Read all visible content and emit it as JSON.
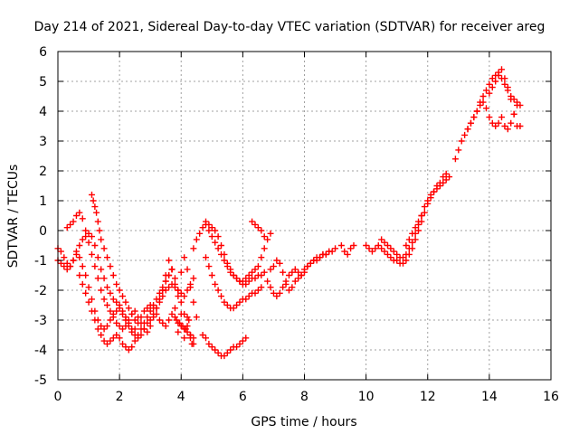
{
  "chart_data": {
    "type": "scatter",
    "title": "Day 214 of 2021, Sidereal Day-to-day VTEC variation (SDTVAR) for receiver areg",
    "xlabel": "GPS time / hours",
    "ylabel": "SDTVAR / TECUs",
    "xlim": [
      0,
      16
    ],
    "ylim": [
      -5,
      6
    ],
    "xticks": [
      "0",
      "2",
      "4",
      "6",
      "8",
      "10",
      "12",
      "14",
      "16"
    ],
    "yticks": [
      "-5",
      "-4",
      "-3",
      "-2",
      "-1",
      "0",
      "1",
      "2",
      "3",
      "4",
      "5",
      "6"
    ],
    "grid": true,
    "marker": "plus",
    "color": "#ff0000",
    "series": [
      {
        "x": [
          0.0,
          0.1,
          0.2,
          0.3,
          0.4,
          0.5,
          0.6,
          0.7,
          0.8,
          0.9,
          1.0,
          1.1,
          1.2,
          1.3,
          1.4,
          1.5,
          1.6,
          1.7,
          1.8,
          1.9,
          2.0,
          2.1,
          2.2,
          2.3,
          2.4,
          2.5,
          2.6,
          2.7,
          2.8,
          2.9,
          3.0,
          3.1,
          3.2,
          3.3,
          3.4,
          3.5,
          3.6,
          3.7,
          3.8,
          3.9,
          4.0,
          4.1,
          4.2,
          4.3,
          4.4
        ],
        "y": [
          -1.0,
          -1.1,
          -1.2,
          -1.3,
          -1.2,
          -1.0,
          -0.7,
          -0.5,
          -0.3,
          -0.2,
          -0.1,
          -0.2,
          -0.5,
          -0.9,
          -1.3,
          -1.6,
          -1.9,
          -2.1,
          -2.3,
          -2.4,
          -2.5,
          -2.7,
          -2.9,
          -3.1,
          -3.3,
          -3.5,
          -3.6,
          -3.5,
          -3.3,
          -3.1,
          -3.0,
          -2.8,
          -2.6,
          -2.4,
          -2.2,
          -2.0,
          -1.9,
          -1.8,
          -1.9,
          -2.0,
          -2.1,
          -2.2,
          -2.0,
          -1.8,
          -1.6
        ]
      },
      {
        "x": [
          0.0,
          0.1,
          0.2,
          0.3,
          0.4,
          0.5,
          0.6,
          0.7,
          0.8,
          0.9,
          1.0,
          1.1,
          1.2,
          1.3,
          1.4,
          1.5,
          1.6,
          1.7,
          1.8,
          1.9,
          2.0,
          2.1,
          2.2,
          2.3,
          2.4,
          2.5,
          2.6,
          2.7,
          2.8,
          2.9,
          3.0,
          3.1,
          3.2,
          3.3,
          3.4,
          3.5,
          3.6,
          3.7,
          3.8,
          3.9,
          4.0,
          4.1,
          4.2,
          4.3,
          4.4
        ],
        "y": [
          -0.6,
          -0.7,
          -0.9,
          -1.1,
          -1.2,
          -1.0,
          -0.8,
          -0.9,
          -1.2,
          -1.5,
          -1.9,
          -2.3,
          -2.7,
          -3.0,
          -3.2,
          -3.3,
          -3.2,
          -3.0,
          -2.8,
          -2.7,
          -2.6,
          -2.8,
          -3.0,
          -3.2,
          -3.4,
          -3.3,
          -3.1,
          -2.9,
          -2.7,
          -2.6,
          -2.5,
          -2.6,
          -2.8,
          -3.0,
          -3.1,
          -3.2,
          -3.0,
          -2.8,
          -2.9,
          -3.1,
          -3.2,
          -3.3,
          -3.4,
          -3.6,
          -3.8
        ]
      },
      {
        "x": [
          0.3,
          0.4,
          0.5,
          0.6,
          0.7,
          0.8,
          0.9,
          1.0,
          1.1,
          1.2,
          1.3,
          1.4,
          1.5,
          1.6,
          1.7,
          1.8,
          1.9,
          2.0,
          2.1,
          2.2,
          2.3,
          2.4,
          2.5,
          2.6,
          2.7,
          2.8,
          2.9,
          3.0,
          3.1,
          3.2,
          3.3,
          3.4,
          3.5,
          3.6,
          3.7,
          3.8,
          3.9,
          4.0,
          4.1,
          4.2,
          4.3
        ],
        "y": [
          0.1,
          0.2,
          0.3,
          0.5,
          0.6,
          0.4,
          0.0,
          -0.4,
          -0.8,
          -1.2,
          -1.6,
          -2.0,
          -2.3,
          -2.5,
          -2.7,
          -2.9,
          -3.1,
          -3.2,
          -3.3,
          -3.2,
          -3.0,
          -2.8,
          -2.7,
          -2.9,
          -3.1,
          -3.3,
          -3.4,
          -3.2,
          -2.9,
          -2.6,
          -2.3,
          -2.0,
          -1.7,
          -1.5,
          -1.3,
          -1.6,
          -2.0,
          -2.4,
          -2.8,
          -3.2,
          -3.5
        ]
      },
      {
        "x": [
          0.7,
          0.8,
          0.9,
          1.0,
          1.1,
          1.2,
          1.3,
          1.4,
          1.5,
          1.6,
          1.7,
          1.8,
          1.9,
          2.0,
          2.1,
          2.2,
          2.3,
          2.4,
          2.5,
          2.6,
          2.7,
          2.8,
          2.9,
          3.0,
          3.1,
          3.2,
          3.3,
          3.4,
          3.5,
          3.6,
          3.7
        ],
        "y": [
          -1.5,
          -1.8,
          -2.1,
          -2.4,
          -2.7,
          -3.0,
          -3.3,
          -3.5,
          -3.7,
          -3.8,
          -3.7,
          -3.6,
          -3.5,
          -3.6,
          -3.8,
          -3.9,
          -4.0,
          -3.9,
          -3.7,
          -3.5,
          -3.3,
          -3.1,
          -2.9,
          -2.7,
          -2.5,
          -2.3,
          -2.1,
          -1.9,
          -1.7,
          -1.5,
          -1.3
        ]
      },
      {
        "x": [
          1.1,
          1.15,
          1.2,
          1.25,
          1.3,
          1.35,
          1.4,
          1.5,
          1.6,
          1.7,
          1.8,
          1.9,
          2.0,
          2.1,
          2.2,
          2.3,
          2.4,
          2.5
        ],
        "y": [
          1.2,
          1.0,
          0.8,
          0.6,
          0.3,
          0.0,
          -0.3,
          -0.6,
          -0.9,
          -1.2,
          -1.5,
          -1.8,
          -2.0,
          -2.2,
          -2.4,
          -2.6,
          -2.8,
          -3.0
        ]
      },
      {
        "x": [
          3.4,
          3.5,
          3.6,
          3.7,
          3.8,
          3.9,
          4.0,
          4.1,
          4.2,
          4.3,
          4.4,
          4.5
        ],
        "y": [
          -2.0,
          -1.5,
          -1.0,
          -1.3,
          -1.8,
          -2.2,
          -1.4,
          -0.9,
          -1.3,
          -1.9,
          -2.4,
          -2.9
        ]
      },
      {
        "x": [
          3.8,
          3.85,
          3.9,
          3.95,
          4.0,
          4.05,
          4.1,
          4.15,
          4.2,
          4.25,
          4.3,
          4.35,
          4.4
        ],
        "y": [
          -2.6,
          -3.0,
          -3.4,
          -3.1,
          -2.8,
          -3.2,
          -3.6,
          -3.3,
          -2.9,
          -3.0,
          -3.5,
          -3.8,
          -3.6
        ]
      },
      {
        "x": [
          4.4,
          4.5,
          4.6,
          4.7,
          4.8,
          4.9,
          5.0,
          5.1,
          5.2,
          5.3,
          5.4,
          5.5,
          5.6,
          5.7,
          5.8,
          5.9,
          6.0,
          6.1,
          6.2,
          6.3,
          6.4,
          6.5,
          6.6,
          6.7
        ],
        "y": [
          -0.6,
          -0.3,
          -0.1,
          0.1,
          0.3,
          0.2,
          0.1,
          0.0,
          -0.2,
          -0.5,
          -0.8,
          -1.1,
          -1.3,
          -1.5,
          -1.6,
          -1.7,
          -1.8,
          -1.8,
          -1.7,
          -1.6,
          -1.6,
          -1.5,
          -1.5,
          -1.4
        ]
      },
      {
        "x": [
          4.8,
          4.9,
          5.0,
          5.1,
          5.2,
          5.3,
          5.4,
          5.5,
          5.6,
          5.7,
          5.8,
          5.9,
          6.0,
          6.1,
          6.2,
          6.3,
          6.4,
          6.5,
          6.6
        ],
        "y": [
          -0.9,
          -1.2,
          -1.5,
          -1.8,
          -2.0,
          -2.2,
          -2.4,
          -2.5,
          -2.6,
          -2.6,
          -2.5,
          -2.4,
          -2.3,
          -2.3,
          -2.2,
          -2.1,
          -2.1,
          -2.0,
          -1.9
        ]
      },
      {
        "x": [
          4.8,
          4.9,
          5.0,
          5.1,
          5.2,
          5.3,
          5.4,
          5.5,
          5.6,
          5.7,
          5.8,
          5.9,
          6.0,
          6.1,
          6.2,
          6.3,
          6.4,
          6.5,
          6.6,
          6.7,
          6.8,
          6.9
        ],
        "y": [
          0.2,
          0.0,
          -0.2,
          -0.4,
          -0.6,
          -0.8,
          -1.0,
          -1.2,
          -1.4,
          -1.5,
          -1.6,
          -1.7,
          -1.7,
          -1.6,
          -1.5,
          -1.4,
          -1.3,
          -1.2,
          -0.9,
          -0.6,
          -0.3,
          -0.1
        ]
      },
      {
        "x": [
          4.7,
          4.8,
          4.9,
          5.0,
          5.1,
          5.2,
          5.3,
          5.4,
          5.5,
          5.6,
          5.7,
          5.8,
          5.9,
          6.0,
          6.1
        ],
        "y": [
          -3.5,
          -3.6,
          -3.8,
          -3.9,
          -4.0,
          -4.1,
          -4.2,
          -4.2,
          -4.1,
          -4.0,
          -3.9,
          -3.9,
          -3.8,
          -3.7,
          -3.6
        ]
      },
      {
        "x": [
          6.3,
          6.4,
          6.5,
          6.6,
          6.7
        ],
        "y": [
          0.3,
          0.2,
          0.1,
          0.0,
          -0.2
        ]
      },
      {
        "x": [
          6.8,
          6.9,
          7.0,
          7.1,
          7.2,
          7.3,
          7.4,
          7.5,
          7.6,
          7.7,
          7.8,
          7.9,
          8.0,
          8.1,
          8.2,
          8.3,
          8.4,
          8.5,
          8.6,
          8.7,
          8.8,
          8.9,
          9.0
        ],
        "y": [
          -1.7,
          -1.9,
          -2.1,
          -2.2,
          -2.1,
          -1.9,
          -1.7,
          -1.5,
          -1.4,
          -1.3,
          -1.4,
          -1.5,
          -1.4,
          -1.2,
          -1.1,
          -1.0,
          -0.9,
          -0.9,
          -0.8,
          -0.8,
          -0.7,
          -0.7,
          -0.6
        ]
      },
      {
        "x": [
          6.9,
          7.0,
          7.1,
          7.2,
          7.3,
          7.4,
          7.5,
          7.6,
          7.7,
          7.8,
          7.9,
          8.0,
          8.1,
          8.2,
          8.3,
          8.4,
          8.5,
          8.6,
          8.7,
          8.8
        ],
        "y": [
          -1.3,
          -1.2,
          -1.0,
          -1.1,
          -1.4,
          -1.8,
          -2.0,
          -1.9,
          -1.7,
          -1.6,
          -1.5,
          -1.3,
          -1.2,
          -1.1,
          -1.0,
          -1.0,
          -0.9,
          -0.8,
          -0.8,
          -0.7
        ]
      },
      {
        "x": [
          9.2,
          9.3,
          9.4,
          9.5,
          9.6
        ],
        "y": [
          -0.5,
          -0.7,
          -0.8,
          -0.6,
          -0.5
        ]
      },
      {
        "x": [
          10.0,
          10.1,
          10.2,
          10.3,
          10.4,
          10.5,
          10.6,
          10.7,
          10.8,
          10.9,
          11.0,
          11.1,
          11.2,
          11.3,
          11.4,
          11.5,
          11.6,
          11.7,
          11.8,
          11.9,
          12.0,
          12.1,
          12.2,
          12.3,
          12.4,
          12.5,
          12.6,
          12.7
        ],
        "y": [
          -0.5,
          -0.6,
          -0.7,
          -0.6,
          -0.5,
          -0.6,
          -0.7,
          -0.8,
          -0.9,
          -1.0,
          -1.0,
          -1.1,
          -1.1,
          -1.0,
          -0.8,
          -0.6,
          -0.3,
          0.0,
          0.3,
          0.6,
          0.9,
          1.1,
          1.3,
          1.4,
          1.5,
          1.6,
          1.7,
          1.8
        ]
      },
      {
        "x": [
          10.5,
          10.6,
          10.7,
          10.8,
          10.9,
          11.0,
          11.1,
          11.2,
          11.3,
          11.4,
          11.5,
          11.6,
          11.7,
          11.8,
          11.9,
          12.0,
          12.1,
          12.2,
          12.3,
          12.4,
          12.5,
          12.6
        ],
        "y": [
          -0.3,
          -0.4,
          -0.5,
          -0.6,
          -0.7,
          -0.8,
          -0.9,
          -0.9,
          -0.8,
          -0.6,
          -0.4,
          -0.1,
          0.2,
          0.5,
          0.8,
          1.0,
          1.2,
          1.3,
          1.5,
          1.6,
          1.8,
          1.9
        ]
      },
      {
        "x": [
          11.3,
          11.4,
          11.5,
          11.6,
          11.7,
          11.8
        ],
        "y": [
          -0.5,
          -0.3,
          -0.1,
          0.1,
          0.3,
          0.5
        ]
      },
      {
        "x": [
          12.9,
          13.0,
          13.1,
          13.2,
          13.3,
          13.4,
          13.5,
          13.6,
          13.7,
          13.8,
          13.9,
          14.0,
          14.1,
          14.2,
          14.3,
          14.4,
          14.5,
          14.6,
          14.7,
          14.8,
          14.9,
          15.0
        ],
        "y": [
          2.4,
          2.7,
          3.0,
          3.2,
          3.4,
          3.6,
          3.8,
          4.0,
          4.3,
          4.5,
          4.7,
          4.9,
          5.1,
          5.2,
          5.3,
          5.1,
          4.9,
          4.7,
          4.5,
          4.4,
          4.3,
          4.2
        ]
      },
      {
        "x": [
          13.3,
          13.4,
          13.5,
          13.6,
          13.7,
          13.8,
          13.9,
          14.0,
          14.1,
          14.2,
          14.3,
          14.4,
          14.5,
          14.6,
          14.7,
          14.8,
          14.9,
          15.0
        ],
        "y": [
          3.4,
          3.6,
          3.8,
          4.0,
          4.2,
          4.3,
          4.1,
          3.8,
          3.6,
          3.5,
          3.6,
          3.8,
          3.5,
          3.4,
          3.6,
          3.9,
          4.2,
          3.5
        ]
      },
      {
        "x": [
          14.0,
          14.1,
          14.2,
          14.3,
          14.4,
          14.5,
          14.6,
          14.7,
          14.8,
          14.9
        ],
        "y": [
          4.6,
          4.8,
          5.0,
          5.2,
          5.4,
          5.1,
          4.8,
          4.4,
          3.9,
          3.5
        ]
      }
    ]
  }
}
